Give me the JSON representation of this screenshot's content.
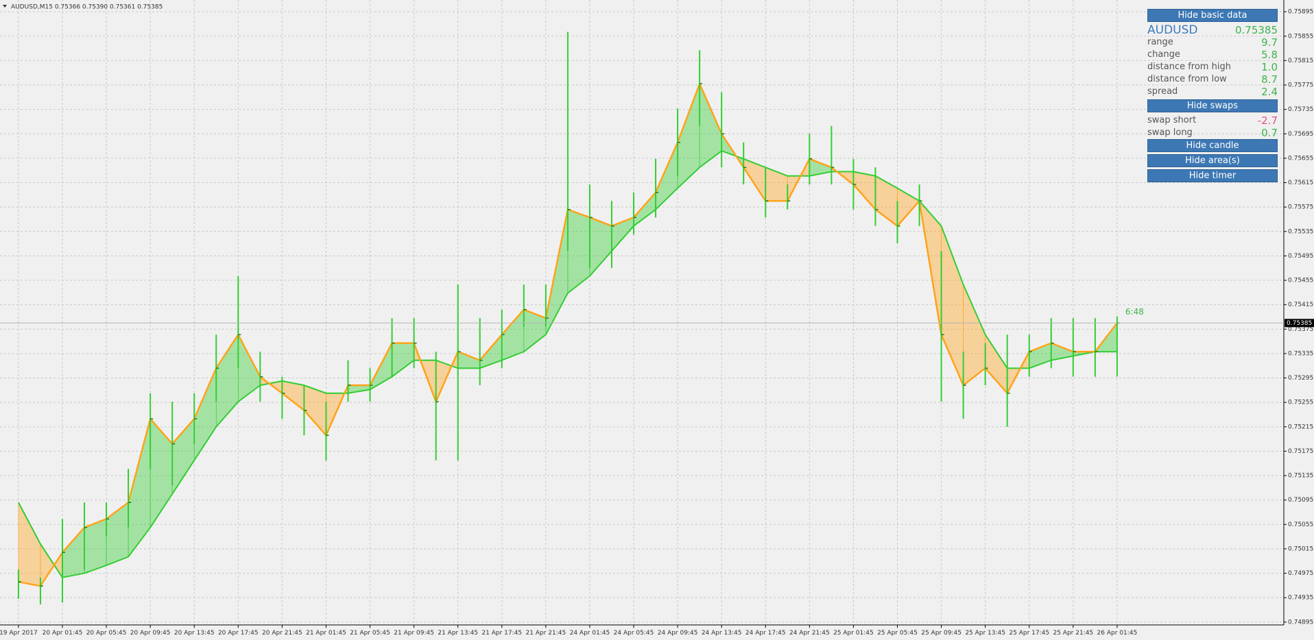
{
  "chart_data": {
    "type": "candlestick",
    "title": "AUDUSD,M15  0.75366 0.75390 0.75361 0.75385",
    "current_price": 0.75385,
    "timer": "6:48",
    "categories": [
      "19 Apr 2017",
      null,
      "20 Apr 01:45",
      null,
      "20 Apr 05:45",
      null,
      "20 Apr 09:45",
      null,
      "20 Apr 13:45",
      null,
      "20 Apr 17:45",
      null,
      "20 Apr 21:45",
      null,
      "21 Apr 01:45",
      null,
      "21 Apr 05:45",
      null,
      "21 Apr 09:45",
      null,
      "21 Apr 13:45",
      null,
      "21 Apr 17:45",
      null,
      "21 Apr 21:45",
      null,
      "24 Apr 01:45",
      null,
      "24 Apr 05:45",
      null,
      "24 Apr 09:45",
      null,
      "24 Apr 13:45",
      null,
      "24 Apr 17:45",
      null,
      "24 Apr 21:45",
      null,
      "25 Apr 01:45",
      null,
      "25 Apr 05:45",
      null,
      "25 Apr 09:45",
      null,
      "25 Apr 13:45",
      null,
      "25 Apr 17:45",
      null,
      "25 Apr 21:45",
      null,
      "26 Apr 01:45"
    ],
    "high": [
      0.74981,
      0.74968,
      0.75064,
      0.75091,
      0.75091,
      0.75146,
      0.7527,
      0.75256,
      0.7527,
      0.75366,
      0.75462,
      0.75338,
      0.75297,
      0.75283,
      0.75256,
      0.75324,
      0.75311,
      0.75393,
      0.75393,
      0.75338,
      0.75448,
      0.75393,
      0.75407,
      0.75448,
      0.75448,
      0.75862,
      0.75612,
      0.75585,
      0.75599,
      0.75654,
      0.75736,
      0.75832,
      0.75763,
      0.75681,
      0.7564,
      0.75612,
      0.75695,
      0.75708,
      0.75654,
      0.7564,
      0.75585,
      0.75612,
      0.75503,
      0.75338,
      0.75352,
      0.75366,
      0.75366,
      0.75393,
      0.75393,
      0.75393,
      0.75396
    ],
    "low": [
      0.74933,
      0.74924,
      0.74927,
      0.74981,
      0.75036,
      0.7505,
      0.75146,
      0.75119,
      0.75187,
      0.75256,
      0.75311,
      0.75256,
      0.75228,
      0.75201,
      0.7516,
      0.75256,
      0.75256,
      0.75297,
      0.75311,
      0.7516,
      0.7516,
      0.75283,
      0.75311,
      0.75379,
      0.75379,
      0.75503,
      0.75475,
      0.75475,
      0.7553,
      0.75558,
      0.75626,
      0.75708,
      0.7564,
      0.75612,
      0.75558,
      0.75571,
      0.75612,
      0.75612,
      0.75571,
      0.75544,
      0.75516,
      0.75544,
      0.75256,
      0.75228,
      0.75283,
      0.75215,
      0.75297,
      0.75311,
      0.75297,
      0.75297,
      0.75297
    ],
    "close": [
      0.74961,
      0.74954,
      0.75009,
      0.7505,
      0.75064,
      0.75091,
      0.75228,
      0.75187,
      0.75228,
      0.75311,
      0.75366,
      0.75297,
      0.7527,
      0.75242,
      0.75201,
      0.75283,
      0.75283,
      0.75352,
      0.75352,
      0.75256,
      0.75338,
      0.75324,
      0.75366,
      0.75407,
      0.75393,
      0.75571,
      0.75558,
      0.75544,
      0.75558,
      0.75599,
      0.75681,
      0.75777,
      0.75695,
      0.7564,
      0.75585,
      0.75585,
      0.75654,
      0.7564,
      0.75612,
      0.75571,
      0.75544,
      0.75585,
      0.75366,
      0.75283,
      0.75311,
      0.7527,
      0.75338,
      0.75352,
      0.75338,
      0.75338,
      0.75385
    ],
    "slow": [
      0.75091,
      0.75023,
      0.74968,
      0.74975,
      0.74988,
      0.75002,
      0.7505,
      0.75105,
      0.7516,
      0.75215,
      0.75256,
      0.75283,
      0.7529,
      0.75283,
      0.7527,
      0.7527,
      0.75276,
      0.75297,
      0.75324,
      0.75324,
      0.75311,
      0.75311,
      0.75324,
      0.75338,
      0.75366,
      0.75434,
      0.75462,
      0.75503,
      0.75544,
      0.75571,
      0.75606,
      0.7564,
      0.75667,
      0.75654,
      0.7564,
      0.75626,
      0.75626,
      0.75633,
      0.75633,
      0.75626,
      0.75606,
      0.75585,
      0.75544,
      0.75448,
      0.75366,
      0.75311,
      0.75311,
      0.75324,
      0.75331,
      0.75338,
      0.75338
    ],
    "bar_color": "#32cd32",
    "up_color": "#32cd32",
    "down_color": "#ffa31a",
    "ylim": [
      0.7489,
      0.7591
    ],
    "yticks": [
      0.75895,
      0.75855,
      0.75815,
      0.75775,
      0.75735,
      0.75695,
      0.75655,
      0.75615,
      0.75575,
      0.75535,
      0.75495,
      0.75455,
      0.75415,
      0.75375,
      0.75335,
      0.75295,
      0.75255,
      0.75215,
      0.75175,
      0.75135,
      0.75095,
      0.75055,
      0.75015,
      0.74975,
      0.74935,
      0.74895
    ],
    "grid": true
  },
  "panel": {
    "hide_basic_data": "Hide basic data",
    "symbol": "AUDUSD",
    "price": "0.75385",
    "rows": [
      {
        "label": "range",
        "value": "9.7"
      },
      {
        "label": "change",
        "value": "5.8"
      },
      {
        "label": "distance from high",
        "value": "1.0"
      },
      {
        "label": "distance from low",
        "value": "8.7"
      },
      {
        "label": "spread",
        "value": "2.4"
      }
    ],
    "hide_swaps": "Hide swaps",
    "swaps": [
      {
        "label": "swap short",
        "value": "-2.7"
      },
      {
        "label": "swap long",
        "value": "0.7"
      }
    ],
    "buttons": [
      "Hide candle",
      "Hide area(s)",
      "Hide timer"
    ]
  }
}
